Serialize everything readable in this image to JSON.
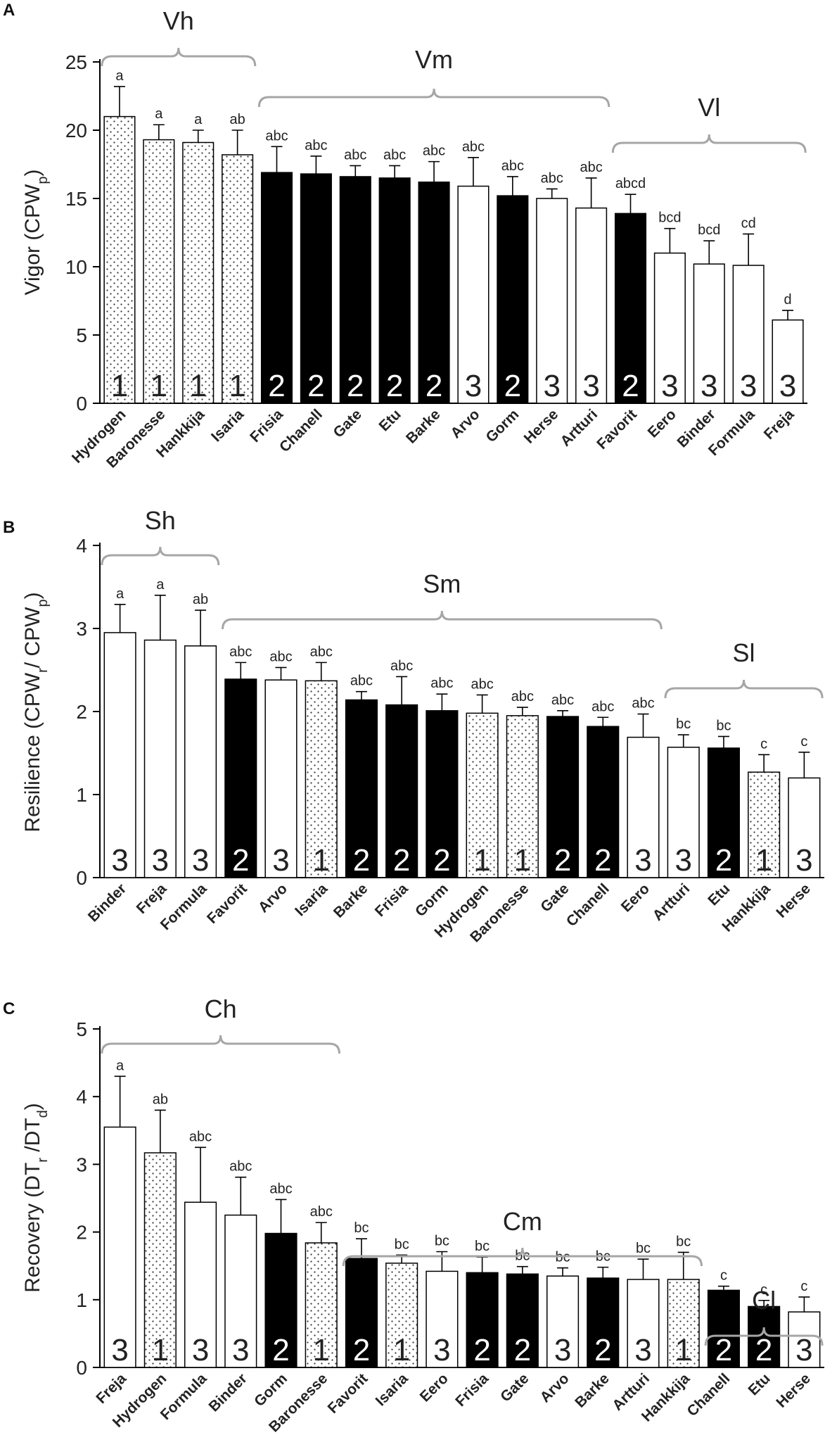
{
  "colors": {
    "black": "#000000",
    "white": "#ffffff",
    "bracket": "#a6a6a6",
    "axis": "#000000"
  },
  "chart_data": [
    {
      "type": "bar",
      "panel": "A",
      "ylabel_main": "Vigor (CPW",
      "ylabel_sub": "p",
      "ylabel_end": ")",
      "ylim": [
        0,
        25
      ],
      "yticks": [
        "0",
        "5",
        "10",
        "15",
        "20",
        "25"
      ],
      "categories": [
        "Hydrogen",
        "Baronesse",
        "Hankkija",
        "Isaria",
        "Frisia",
        "Chanell",
        "Gate",
        "Etu",
        "Barke",
        "Arvo",
        "Gorm",
        "Herse",
        "Artturi",
        "Favorit",
        "Eero",
        "Binder",
        "Formula",
        "Freja"
      ],
      "values": [
        21.0,
        19.3,
        19.1,
        18.2,
        16.9,
        16.8,
        16.6,
        16.5,
        16.2,
        15.9,
        15.2,
        15.0,
        14.3,
        13.9,
        11.0,
        10.2,
        10.1,
        6.1
      ],
      "errors": [
        2.2,
        1.1,
        0.9,
        1.8,
        1.9,
        1.3,
        0.8,
        0.9,
        1.5,
        2.1,
        1.4,
        0.7,
        2.2,
        1.4,
        1.8,
        1.7,
        2.3,
        0.7
      ],
      "significance": [
        "a",
        "a",
        "a",
        "ab",
        "abc",
        "abc",
        "abc",
        "abc",
        "abc",
        "abc",
        "abc",
        "abc",
        "abc",
        "abcd",
        "bcd",
        "bcd",
        "cd",
        "d"
      ],
      "cluster": [
        "1",
        "1",
        "1",
        "1",
        "2",
        "2",
        "2",
        "2",
        "2",
        "3",
        "2",
        "3",
        "3",
        "2",
        "3",
        "3",
        "3",
        "3"
      ],
      "groups": [
        {
          "label": "Vh",
          "from": 0,
          "to": 3
        },
        {
          "label": "Vm",
          "from": 4,
          "to": 12
        },
        {
          "label": "Vl",
          "from": 13,
          "to": 17
        }
      ]
    },
    {
      "type": "bar",
      "panel": "B",
      "ylabel_main": "Resilience (CPW",
      "ylabel_sub": "r",
      "ylabel_mid": "/ CPW",
      "ylabel_sub2": "p",
      "ylabel_end": ")",
      "ylim": [
        0,
        4
      ],
      "yticks": [
        "0",
        "1",
        "2",
        "3",
        "4"
      ],
      "categories": [
        "Binder",
        "Freja",
        "Formula",
        "Favorit",
        "Arvo",
        "Isaria",
        "Barke",
        "Frisia",
        "Gorm",
        "Hydrogen",
        "Baronesse",
        "Gate",
        "Chanell",
        "Eero",
        "Artturi",
        "Etu",
        "Hankkija",
        "Herse"
      ],
      "values": [
        2.95,
        2.86,
        2.79,
        2.39,
        2.38,
        2.37,
        2.14,
        2.08,
        2.01,
        1.98,
        1.95,
        1.94,
        1.82,
        1.69,
        1.57,
        1.56,
        1.27,
        1.2
      ],
      "errors": [
        0.34,
        0.54,
        0.43,
        0.2,
        0.15,
        0.22,
        0.1,
        0.34,
        0.2,
        0.22,
        0.1,
        0.07,
        0.11,
        0.28,
        0.15,
        0.14,
        0.21,
        0.31
      ],
      "significance": [
        "a",
        "a",
        "ab",
        "abc",
        "abc",
        "abc",
        "abc",
        "abc",
        "abc",
        "abc",
        "abc",
        "abc",
        "abc",
        "abc",
        "bc",
        "bc",
        "c",
        "c"
      ],
      "cluster": [
        "3",
        "3",
        "3",
        "2",
        "3",
        "1",
        "2",
        "2",
        "2",
        "1",
        "1",
        "2",
        "2",
        "3",
        "3",
        "2",
        "1",
        "3"
      ],
      "groups": [
        {
          "label": "Sh",
          "from": 0,
          "to": 2
        },
        {
          "label": "Sm",
          "from": 3,
          "to": 13
        },
        {
          "label": "Sl",
          "from": 14,
          "to": 17
        }
      ]
    },
    {
      "type": "bar",
      "panel": "C",
      "ylabel_main": "Recovery  (DT",
      "ylabel_sub": "r",
      "ylabel_mid": " /DT",
      "ylabel_sub2": "d",
      "ylabel_end": ")",
      "ylim": [
        0,
        5
      ],
      "yticks": [
        "0",
        "1",
        "2",
        "3",
        "4",
        "5"
      ],
      "categories": [
        "Freja",
        "Hydrogen",
        "Formula",
        "Binder",
        "Gorm",
        "Baronesse",
        "Favorit",
        "Isaria",
        "Eero",
        "Frisia",
        "Gate",
        "Arvo",
        "Barke",
        "Artturi",
        "Hankkija",
        "Chanell",
        "Etu",
        "Herse"
      ],
      "values": [
        3.55,
        3.17,
        2.44,
        2.25,
        1.98,
        1.84,
        1.61,
        1.54,
        1.42,
        1.4,
        1.38,
        1.35,
        1.32,
        1.3,
        1.3,
        1.14,
        0.9,
        0.82
      ],
      "errors": [
        0.75,
        0.63,
        0.81,
        0.56,
        0.5,
        0.3,
        0.29,
        0.12,
        0.29,
        0.23,
        0.11,
        0.12,
        0.16,
        0.3,
        0.4,
        0.06,
        0.09,
        0.22
      ],
      "significance": [
        "a",
        "ab",
        "abc",
        "abc",
        "abc",
        "abc",
        "bc",
        "bc",
        "bc",
        "bc",
        "bc",
        "bc",
        "bc",
        "bc",
        "bc",
        "c",
        "c",
        "c"
      ],
      "cluster": [
        "3",
        "1",
        "3",
        "3",
        "2",
        "1",
        "2",
        "1",
        "3",
        "2",
        "2",
        "3",
        "2",
        "3",
        "1",
        "2",
        "2",
        "3"
      ],
      "groups": [
        {
          "label": "Ch",
          "from": 0,
          "to": 5
        },
        {
          "label": "Cm",
          "from": 6,
          "to": 14
        },
        {
          "label": "Cl",
          "from": 15,
          "to": 17
        }
      ]
    }
  ]
}
